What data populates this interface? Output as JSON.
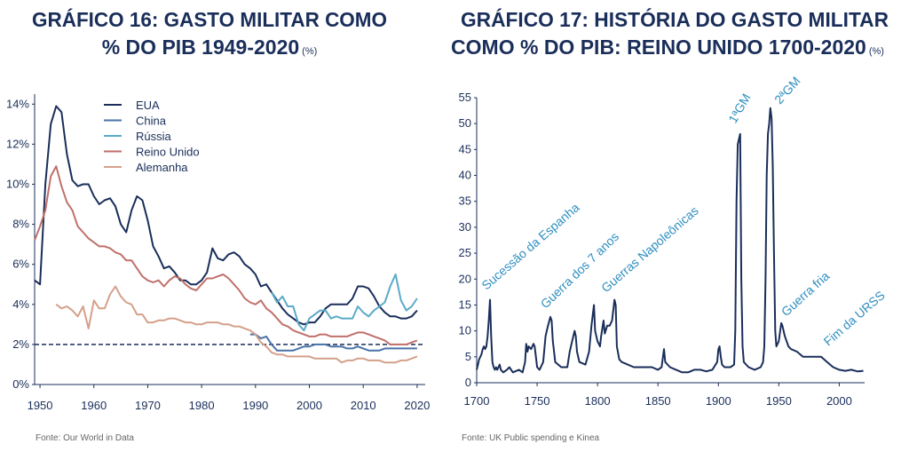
{
  "chart_data": [
    {
      "type": "line",
      "title": [
        "GRÁFICO 16: GASTO MILITAR COMO",
        "% DO PIB 1949-2020"
      ],
      "unit": "(%)",
      "source": "Fonte: Our World in Data",
      "xlim": [
        1949,
        2021.5
      ],
      "xticks": [
        1950,
        1960,
        1970,
        1980,
        1990,
        2000,
        2010,
        2020
      ],
      "ylim": [
        0,
        14.5
      ],
      "yticks": [
        {
          "value": 0,
          "label": "0%"
        },
        {
          "value": 2,
          "label": "2%"
        },
        {
          "value": 4,
          "label": "4%"
        },
        {
          "value": 6,
          "label": "6%"
        },
        {
          "value": 8,
          "label": "8%"
        },
        {
          "value": 10,
          "label": "10%"
        },
        {
          "value": 12,
          "label": "12%"
        },
        {
          "value": 14,
          "label": "14%"
        }
      ],
      "hline": 2,
      "hline_color": "#1a2e5a",
      "legend": "upper left",
      "series": [
        {
          "name": "EUA",
          "color": "#1a2e5a",
          "x": [
            1949,
            1950,
            1951,
            1952,
            1953,
            1954,
            1955,
            1956,
            1957,
            1958,
            1959,
            1960,
            1961,
            1962,
            1963,
            1964,
            1965,
            1966,
            1967,
            1968,
            1969,
            1970,
            1971,
            1972,
            1973,
            1974,
            1975,
            1976,
            1977,
            1978,
            1979,
            1980,
            1981,
            1982,
            1983,
            1984,
            1985,
            1986,
            1987,
            1988,
            1989,
            1990,
            1991,
            1992,
            1993,
            1994,
            1995,
            1996,
            1997,
            1998,
            1999,
            2000,
            2001,
            2002,
            2003,
            2004,
            2005,
            2006,
            2007,
            2008,
            2009,
            2010,
            2011,
            2012,
            2013,
            2014,
            2015,
            2016,
            2017,
            2018,
            2019,
            2020
          ],
          "values": [
            5.2,
            5.0,
            10.0,
            13.0,
            13.9,
            13.6,
            11.5,
            10.2,
            9.9,
            10.0,
            10.0,
            9.4,
            9.0,
            9.2,
            9.3,
            8.9,
            8.0,
            7.6,
            8.7,
            9.4,
            9.2,
            8.2,
            6.9,
            6.4,
            5.8,
            5.9,
            5.6,
            5.2,
            5.2,
            5.0,
            5.0,
            5.2,
            5.6,
            6.8,
            6.3,
            6.2,
            6.5,
            6.6,
            6.4,
            6.0,
            5.8,
            5.5,
            4.9,
            5.0,
            4.6,
            4.2,
            3.8,
            3.5,
            3.3,
            3.1,
            3.0,
            3.1,
            3.1,
            3.4,
            3.8,
            4.0,
            4.0,
            4.0,
            4.0,
            4.3,
            4.9,
            4.9,
            4.8,
            4.4,
            3.9,
            3.6,
            3.4,
            3.4,
            3.3,
            3.3,
            3.4,
            3.7
          ]
        },
        {
          "name": "China",
          "color": "#4a72a8",
          "x": [
            1989,
            1990,
            1991,
            1992,
            1993,
            1994,
            1995,
            1996,
            1997,
            1998,
            1999,
            2000,
            2001,
            2002,
            2003,
            2004,
            2005,
            2006,
            2007,
            2008,
            2009,
            2010,
            2011,
            2012,
            2013,
            2014,
            2015,
            2016,
            2017,
            2018,
            2019,
            2020
          ],
          "values": [
            2.5,
            2.5,
            2.3,
            2.4,
            2.0,
            1.7,
            1.7,
            1.7,
            1.7,
            1.8,
            1.9,
            1.9,
            2.0,
            2.0,
            2.0,
            1.9,
            1.9,
            1.9,
            1.8,
            1.8,
            1.9,
            1.8,
            1.7,
            1.7,
            1.7,
            1.8,
            1.8,
            1.8,
            1.8,
            1.8,
            1.8,
            1.8
          ]
        },
        {
          "name": "Rússia",
          "color": "#5aaac8",
          "x": [
            1993,
            1994,
            1995,
            1996,
            1997,
            1998,
            1999,
            2000,
            2001,
            2002,
            2003,
            2004,
            2005,
            2006,
            2007,
            2008,
            2009,
            2010,
            2011,
            2012,
            2013,
            2014,
            2015,
            2016,
            2017,
            2018,
            2019,
            2020
          ],
          "values": [
            4.6,
            4.1,
            4.4,
            3.9,
            3.9,
            3.0,
            2.7,
            3.3,
            3.5,
            3.7,
            3.7,
            3.3,
            3.4,
            3.3,
            3.3,
            3.3,
            3.9,
            3.6,
            3.4,
            3.7,
            3.9,
            4.1,
            4.9,
            5.5,
            4.2,
            3.7,
            3.9,
            4.3
          ]
        },
        {
          "name": "Reino Unido",
          "color": "#c0706a",
          "x": [
            1949,
            1950,
            1951,
            1952,
            1953,
            1954,
            1955,
            1956,
            1957,
            1958,
            1959,
            1960,
            1961,
            1962,
            1963,
            1964,
            1965,
            1966,
            1967,
            1968,
            1969,
            1970,
            1971,
            1972,
            1973,
            1974,
            1975,
            1976,
            1977,
            1978,
            1979,
            1980,
            1981,
            1982,
            1983,
            1984,
            1985,
            1986,
            1987,
            1988,
            1989,
            1990,
            1991,
            1992,
            1993,
            1994,
            1995,
            1996,
            1997,
            1998,
            1999,
            2000,
            2001,
            2002,
            2003,
            2004,
            2005,
            2006,
            2007,
            2008,
            2009,
            2010,
            2011,
            2012,
            2013,
            2014,
            2015,
            2016,
            2017,
            2018,
            2019,
            2020
          ],
          "values": [
            7.2,
            7.9,
            8.7,
            10.4,
            10.9,
            9.9,
            9.1,
            8.7,
            7.9,
            7.6,
            7.3,
            7.1,
            6.9,
            6.9,
            6.8,
            6.6,
            6.5,
            6.2,
            6.2,
            5.8,
            5.4,
            5.2,
            5.1,
            5.2,
            4.9,
            5.2,
            5.4,
            5.3,
            5.0,
            4.8,
            4.7,
            5.0,
            5.3,
            5.3,
            5.4,
            5.5,
            5.3,
            5.0,
            4.7,
            4.3,
            4.1,
            4.0,
            4.2,
            3.8,
            3.6,
            3.3,
            3.0,
            2.9,
            2.7,
            2.6,
            2.5,
            2.4,
            2.4,
            2.5,
            2.5,
            2.4,
            2.4,
            2.4,
            2.4,
            2.5,
            2.6,
            2.6,
            2.5,
            2.4,
            2.3,
            2.2,
            2.0,
            2.0,
            2.0,
            2.0,
            2.1,
            2.2
          ]
        },
        {
          "name": "Alemanha",
          "color": "#d4a08a",
          "x": [
            1953,
            1954,
            1955,
            1956,
            1957,
            1958,
            1959,
            1960,
            1961,
            1962,
            1963,
            1964,
            1965,
            1966,
            1967,
            1968,
            1969,
            1970,
            1971,
            1972,
            1973,
            1974,
            1975,
            1976,
            1977,
            1978,
            1979,
            1980,
            1981,
            1982,
            1983,
            1984,
            1985,
            1986,
            1987,
            1988,
            1989,
            1990,
            1991,
            1992,
            1993,
            1994,
            1995,
            1996,
            1997,
            1998,
            1999,
            2000,
            2001,
            2002,
            2003,
            2004,
            2005,
            2006,
            2007,
            2008,
            2009,
            2010,
            2011,
            2012,
            2013,
            2014,
            2015,
            2016,
            2017,
            2018,
            2019,
            2020
          ],
          "values": [
            4.0,
            3.8,
            3.9,
            3.7,
            3.4,
            3.9,
            2.8,
            4.2,
            3.8,
            3.8,
            4.5,
            4.9,
            4.4,
            4.1,
            4.0,
            3.5,
            3.5,
            3.1,
            3.1,
            3.2,
            3.2,
            3.3,
            3.3,
            3.2,
            3.1,
            3.1,
            3.0,
            3.0,
            3.1,
            3.1,
            3.1,
            3.0,
            3.0,
            2.9,
            2.9,
            2.8,
            2.7,
            2.5,
            2.1,
            1.9,
            1.6,
            1.5,
            1.5,
            1.4,
            1.4,
            1.4,
            1.4,
            1.4,
            1.3,
            1.3,
            1.3,
            1.3,
            1.3,
            1.1,
            1.2,
            1.2,
            1.3,
            1.3,
            1.2,
            1.2,
            1.2,
            1.1,
            1.1,
            1.1,
            1.2,
            1.2,
            1.3,
            1.4
          ]
        }
      ]
    },
    {
      "type": "line",
      "title": [
        "GRÁFICO 17: HISTÓRIA DO GASTO MILITAR",
        "COMO % DO PIB: REINO UNIDO 1700-2020"
      ],
      "unit": "(%)",
      "source": "Fonte: UK Public spending e Kinea",
      "xlim": [
        1700,
        2021
      ],
      "xticks": [
        1700,
        1750,
        1800,
        1850,
        1900,
        1950,
        2000
      ],
      "ylim": [
        0,
        55
      ],
      "yticks": [
        0,
        5,
        10,
        15,
        20,
        25,
        30,
        35,
        40,
        45,
        50,
        55
      ],
      "color": "#1a2e5a",
      "x": [
        1700,
        1701,
        1702,
        1703,
        1704,
        1705,
        1706,
        1707,
        1708,
        1709,
        1710,
        1711,
        1712,
        1713,
        1714,
        1715,
        1716,
        1717,
        1718,
        1719,
        1720,
        1722,
        1725,
        1727,
        1730,
        1735,
        1738,
        1740,
        1741,
        1742,
        1743,
        1745,
        1747,
        1748,
        1750,
        1752,
        1755,
        1757,
        1759,
        1761,
        1762,
        1763,
        1765,
        1770,
        1775,
        1777,
        1779,
        1781,
        1782,
        1783,
        1785,
        1790,
        1793,
        1795,
        1797,
        1798,
        1800,
        1802,
        1803,
        1805,
        1806,
        1808,
        1810,
        1812,
        1814,
        1815,
        1816,
        1818,
        1820,
        1825,
        1830,
        1835,
        1840,
        1845,
        1850,
        1853,
        1855,
        1856,
        1860,
        1865,
        1870,
        1875,
        1880,
        1885,
        1890,
        1895,
        1899,
        1900,
        1901,
        1902,
        1903,
        1905,
        1910,
        1913,
        1914,
        1915,
        1916,
        1917,
        1918,
        1919,
        1920,
        1921,
        1925,
        1930,
        1935,
        1937,
        1938,
        1939,
        1940,
        1941,
        1942,
        1943,
        1944,
        1945,
        1946,
        1947,
        1948,
        1950,
        1952,
        1953,
        1955,
        1958,
        1960,
        1965,
        1970,
        1975,
        1980,
        1985,
        1990,
        1995,
        2000,
        2005,
        2010,
        2015,
        2020
      ],
      "values": [
        2.5,
        3.5,
        4.5,
        5,
        5.5,
        6.5,
        7,
        6.5,
        7,
        9,
        12,
        16,
        9,
        4,
        3,
        2.5,
        3,
        2.5,
        3,
        3.5,
        2.5,
        2,
        2.5,
        3,
        2,
        2.5,
        2,
        4,
        7.5,
        6,
        7,
        6.5,
        7.5,
        7,
        3,
        2.5,
        4,
        9,
        11,
        12.7,
        12,
        8,
        4,
        3,
        3,
        6,
        8,
        10,
        9,
        6,
        4,
        3.5,
        6,
        11,
        15,
        10,
        8,
        7,
        9,
        12,
        9.5,
        11,
        11,
        12,
        16,
        15,
        7,
        4.5,
        4,
        3.5,
        3,
        3,
        3,
        3,
        2.5,
        3,
        6.5,
        4,
        3,
        2.5,
        2,
        2,
        2.5,
        2.5,
        2.2,
        2.5,
        4,
        6.5,
        7,
        5,
        3.5,
        3,
        3,
        3.5,
        10,
        35,
        46,
        47,
        48,
        20,
        7,
        4,
        3,
        2.5,
        3,
        4,
        7,
        20,
        40,
        48,
        50,
        53,
        51,
        42,
        25,
        10,
        7,
        8,
        11.5,
        11,
        9,
        7,
        6.5,
        6,
        5,
        5,
        5,
        5,
        4,
        3,
        2.5,
        2.3,
        2.5,
        2.2,
        2.3
      ],
      "annotations": [
        {
          "text": "Sucessão da Espanha",
          "x": 1708,
          "y": 17.8
        },
        {
          "text": "Guerra dos 7 anos",
          "x": 1757,
          "y": 14.2
        },
        {
          "text": "Guerras Napoleônicas",
          "x": 1807,
          "y": 17.3
        },
        {
          "text": "1ªGM",
          "x": 1914,
          "y": 49.9
        },
        {
          "text": "2ªGM",
          "x": 1951,
          "y": 53.6
        },
        {
          "text": "Guerra fria",
          "x": 1956,
          "y": 12.7
        },
        {
          "text": "Fim da URSS",
          "x": 1991,
          "y": 7.0
        }
      ]
    }
  ]
}
